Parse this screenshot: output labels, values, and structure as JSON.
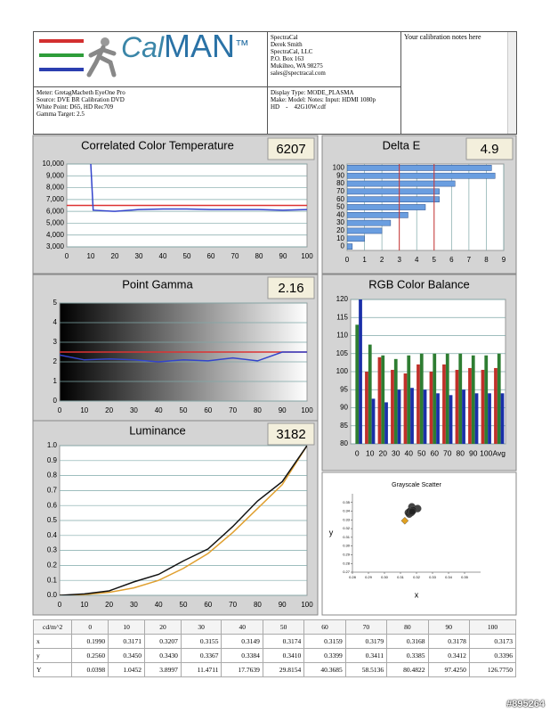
{
  "header": {
    "logo_prefix": "Cal",
    "logo_suffix": "MAN",
    "trademark": "™",
    "contact": [
      "SpectraCal",
      "Derek Smith",
      "SpectraCal, LLC",
      "P.O. Box 163",
      "Mukilteo, WA 98275",
      "sales@spectracal.com"
    ],
    "notes": "Your calibration notes here",
    "meter_info": [
      "Meter: GretagMacbeth EyeOne Pro",
      "Source: DVE BR Calibration DVD",
      "White Point: D65, HD Rec709",
      "Gamma Target: 2.5"
    ],
    "display_info": [
      "Display Type: MODE_PLASMA",
      "Make: Model: Notes: Input: HDMI 1080p",
      "HD    -    42G10W.cdf"
    ]
  },
  "chart_data": [
    {
      "type": "line",
      "title": "Correlated Color Temperature",
      "summary": 6207,
      "x": [
        10,
        11,
        20,
        30,
        40,
        50,
        60,
        70,
        80,
        90,
        100
      ],
      "series": [
        {
          "color": "#3344cc",
          "values": [
            10000,
            6100,
            6000,
            6150,
            6200,
            6200,
            6150,
            6150,
            6150,
            6100,
            6150
          ]
        }
      ],
      "target": 6500,
      "target_color": "#dd3333",
      "xlim": [
        0,
        100
      ],
      "xticks": [
        0,
        10,
        20,
        30,
        40,
        50,
        60,
        70,
        80,
        90,
        100
      ],
      "ylim": [
        3000,
        10000
      ],
      "yticks": [
        {
          "value": 3000,
          "label": "3,000"
        },
        {
          "value": 4000,
          "label": "4,000"
        },
        {
          "value": 5000,
          "label": "5,000"
        },
        {
          "value": 6000,
          "label": "6,000"
        },
        {
          "value": 7000,
          "label": "7,000"
        },
        {
          "value": 8000,
          "label": "8,000"
        },
        {
          "value": 9000,
          "label": "9,000"
        },
        {
          "value": 10000,
          "label": "10,000"
        }
      ],
      "grid": true
    },
    {
      "type": "hbar",
      "title": "Delta E",
      "summary": 4.9,
      "categories": [
        "0",
        "10",
        "20",
        "30",
        "40",
        "50",
        "60",
        "70",
        "80",
        "90",
        "100"
      ],
      "values": [
        0.3,
        1,
        2,
        2.5,
        3.5,
        4.5,
        5.3,
        5.3,
        6.2,
        8.5,
        8.3
      ],
      "color": "#6a9ee0",
      "thresholds": [
        3,
        5
      ],
      "threshold_color": "#cc3333",
      "xlim": [
        0,
        9
      ],
      "xticks": [
        0,
        1,
        2,
        3,
        4,
        5,
        6,
        7,
        8,
        9
      ],
      "xgrid": true
    },
    {
      "type": "line",
      "title": "Point Gamma",
      "summary": 2.16,
      "background_gradient": true,
      "x": [
        0,
        10,
        20,
        30,
        40,
        50,
        60,
        70,
        80,
        90,
        100
      ],
      "series": [
        {
          "color": "#3344cc",
          "values": [
            2.35,
            2.1,
            2.15,
            2.1,
            2.0,
            2.1,
            2.05,
            2.2,
            2.05,
            2.5,
            2.5
          ]
        }
      ],
      "target": 2.5,
      "target_color": "#dd3333",
      "xlim": [
        0,
        100
      ],
      "xticks": [
        0,
        10,
        20,
        30,
        40,
        50,
        60,
        70,
        80,
        90,
        100
      ],
      "ylim": [
        0,
        5
      ],
      "yticks": [
        0,
        1,
        2,
        3,
        4,
        5
      ],
      "grid": true
    },
    {
      "type": "bar",
      "title": "RGB Color Balance",
      "categories": [
        "0",
        "10",
        "20",
        "30",
        "40",
        "50",
        "60",
        "70",
        "80",
        "90",
        "100",
        "Avg"
      ],
      "series": [
        {
          "color": "#c0302a",
          "values": [
            80,
            100,
            104,
            100.5,
            99.5,
            102,
            100,
            102,
            100.5,
            101,
            100.5,
            101
          ]
        },
        {
          "color": "#2e7d32",
          "values": [
            113,
            107.5,
            104.5,
            103.5,
            104.5,
            105,
            105,
            105,
            105,
            104.5,
            104.5,
            105
          ]
        },
        {
          "color": "#1a2fa8",
          "values": [
            120,
            92.5,
            91.5,
            95,
            95.5,
            95,
            94,
            93.5,
            95,
            94,
            94,
            94
          ]
        }
      ],
      "ylim": [
        80,
        120
      ],
      "yticks": [
        80,
        85,
        90,
        95,
        100,
        105,
        110,
        115,
        120
      ],
      "grid": true
    },
    {
      "type": "line",
      "title": "Luminance",
      "summary": 3182,
      "x": [
        0,
        10,
        20,
        30,
        40,
        50,
        60,
        70,
        80,
        90,
        100
      ],
      "series": [
        {
          "color": "#e0a030",
          "values": [
            0,
            0.005,
            0.02,
            0.05,
            0.1,
            0.18,
            0.28,
            0.42,
            0.58,
            0.74,
            1.0
          ]
        },
        {
          "color": "#111111",
          "values": [
            0,
            0.01,
            0.03,
            0.09,
            0.14,
            0.23,
            0.31,
            0.46,
            0.63,
            0.76,
            1.0
          ]
        }
      ],
      "xlim": [
        0,
        100
      ],
      "xticks": [
        0,
        10,
        20,
        30,
        40,
        50,
        60,
        70,
        80,
        90,
        100
      ],
      "ylim": [
        0,
        1
      ],
      "yticks": [
        {
          "value": 0,
          "label": "0.0"
        },
        {
          "value": 0.1,
          "label": "0.1"
        },
        {
          "value": 0.2,
          "label": "0.2"
        },
        {
          "value": 0.3,
          "label": "0.3"
        },
        {
          "value": 0.4,
          "label": "0.4"
        },
        {
          "value": 0.5,
          "label": "0.5"
        },
        {
          "value": 0.6,
          "label": "0.6"
        },
        {
          "value": 0.7,
          "label": "0.7"
        },
        {
          "value": 0.8,
          "label": "0.8"
        },
        {
          "value": 0.9,
          "label": "0.9"
        },
        {
          "value": 1,
          "label": "1.0"
        }
      ],
      "grid": true
    },
    {
      "type": "scatter",
      "title": "Grayscale Scatter",
      "xlabel": "x",
      "ylabel": "y",
      "series": [
        {
          "color": "#222222",
          "x": [
            0.3171,
            0.3207,
            0.3155,
            0.3149,
            0.3174,
            0.3159,
            0.3179,
            0.3168,
            0.3178,
            0.3173
          ],
          "values": [
            0.345,
            0.343,
            0.3367,
            0.3384,
            0.341,
            0.3399,
            0.3411,
            0.3385,
            0.3412,
            0.3396
          ]
        },
        {
          "color": "#e0a020",
          "marker": "diamond",
          "x": [
            0.3127
          ],
          "values": [
            0.329
          ]
        }
      ],
      "xlim": [
        0.28,
        0.36
      ],
      "xticks": [
        0.28,
        0.29,
        {
          "value": 0.3,
          "label": "0.30"
        },
        0.31,
        0.32,
        0.33,
        0.34,
        0.35
      ],
      "ylim": [
        0.27,
        0.36
      ],
      "yticks": [
        0.27,
        0.28,
        0.29,
        {
          "value": 0.3,
          "label": "0.30"
        },
        0.31,
        0.32,
        0.33,
        0.34,
        0.35
      ]
    }
  ],
  "table": {
    "header": [
      "cd/m^2",
      0,
      10,
      20,
      30,
      40,
      50,
      60,
      70,
      80,
      90,
      100
    ],
    "rows": [
      [
        "x",
        "0.1990",
        "0.3171",
        "0.3207",
        "0.3155",
        "0.3149",
        "0.3174",
        "0.3159",
        "0.3179",
        "0.3168",
        "0.3178",
        "0.3173"
      ],
      [
        "y",
        "0.2560",
        "0.3450",
        "0.3430",
        "0.3367",
        "0.3384",
        "0.3410",
        "0.3399",
        "0.3411",
        "0.3385",
        "0.3412",
        "0.3396"
      ],
      [
        "Y",
        "0.0398",
        "1.0452",
        "3.8997",
        "11.4711",
        "17.7639",
        "29.8154",
        "40.3685",
        "58.5136",
        "80.4822",
        "97.4250",
        "126.7750"
      ]
    ]
  },
  "watermark": "#895264"
}
